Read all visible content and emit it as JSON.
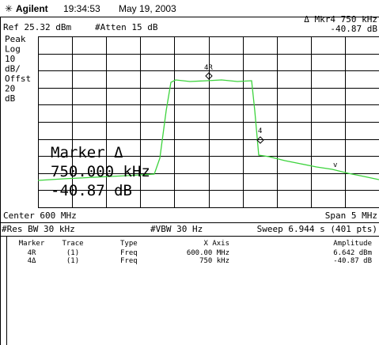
{
  "header": {
    "brand": "Agilent",
    "time": "19:34:53",
    "date": "May 19, 2003"
  },
  "status": {
    "ref": "Ref 25.32 dBm",
    "atten": "#Atten 15 dB",
    "marker_readout": "Δ Mkr4  750 kHz",
    "marker_value": "-40.87 dB"
  },
  "scale_labels": [
    "Peak",
    "Log",
    "10",
    "dB/",
    "Offst",
    "20",
    "dB"
  ],
  "marker_box": [
    "Marker Δ",
    "750.000 kHz",
    "-40.87 dB"
  ],
  "trace_markers": [
    "4R",
    "4"
  ],
  "footer": {
    "center": "Center 600 MHz",
    "span": "Span 5 MHz",
    "res_bw": "#Res BW 30 kHz",
    "vbw": "#VBW 30 Hz",
    "sweep": "Sweep 6.944 s (401 pts)"
  },
  "table": {
    "columns": [
      "Marker",
      "Trace",
      "Type",
      "X Axis",
      "Amplitude"
    ],
    "rows": [
      [
        "4R",
        "(1)",
        "Freq",
        "600.00 MHz",
        "6.642 dBm"
      ],
      [
        "4Δ",
        "(1)",
        "Freq",
        "750 kHz",
        "-40.87 dB"
      ]
    ]
  }
}
